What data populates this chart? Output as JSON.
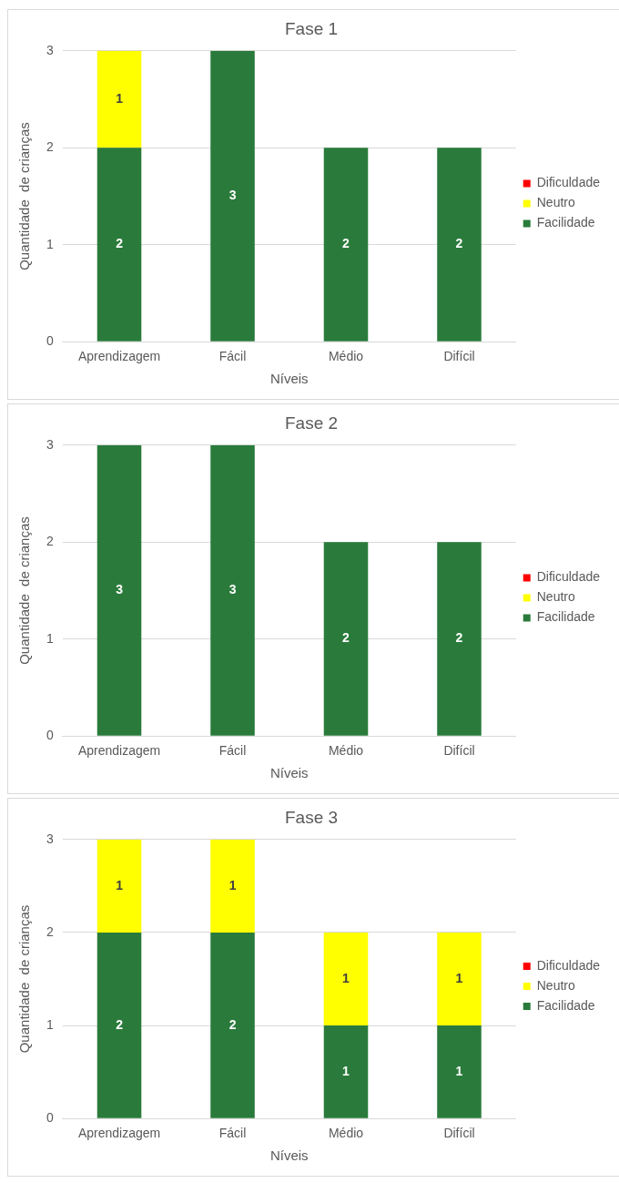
{
  "chart_data": [
    {
      "type": "bar",
      "title": "Fase 1",
      "xlabel": "Níveis",
      "ylabel": "Quantidade  de crianças",
      "categories": [
        "Aprendizagem",
        "Fácil",
        "Médio",
        "Difícil"
      ],
      "stacked": true,
      "ylim": [
        0,
        3
      ],
      "yticks": [
        0,
        1,
        2,
        3
      ],
      "grid": "y",
      "legend": "right",
      "data_labels": true,
      "series": [
        {
          "name": "Facilidade",
          "color": "#2a7b3b",
          "values": [
            2,
            3,
            2,
            2
          ]
        },
        {
          "name": "Neutro",
          "color": "#ffff00",
          "values": [
            1,
            null,
            null,
            null
          ]
        },
        {
          "name": "Dificuldade",
          "color": "#ff0000",
          "values": [
            null,
            null,
            null,
            null
          ]
        }
      ]
    },
    {
      "type": "bar",
      "title": "Fase 2",
      "xlabel": "Níveis",
      "ylabel": "Quantidade  de crianças",
      "categories": [
        "Aprendizagem",
        "Fácil",
        "Médio",
        "Difícil"
      ],
      "stacked": true,
      "ylim": [
        0,
        3
      ],
      "yticks": [
        0,
        1,
        2,
        3
      ],
      "grid": "y",
      "legend": "right",
      "data_labels": true,
      "series": [
        {
          "name": "Facilidade",
          "color": "#2a7b3b",
          "values": [
            3,
            3,
            2,
            2
          ]
        },
        {
          "name": "Neutro",
          "color": "#ffff00",
          "values": [
            null,
            null,
            null,
            null
          ]
        },
        {
          "name": "Dificuldade",
          "color": "#ff0000",
          "values": [
            null,
            null,
            null,
            null
          ]
        }
      ]
    },
    {
      "type": "bar",
      "title": "Fase 3",
      "xlabel": "Níveis",
      "ylabel": "Quantidade  de crianças",
      "categories": [
        "Aprendizagem",
        "Fácil",
        "Médio",
        "Difícil"
      ],
      "stacked": true,
      "ylim": [
        0,
        3
      ],
      "yticks": [
        0,
        1,
        2,
        3
      ],
      "grid": "y",
      "legend": "right",
      "data_labels": true,
      "series": [
        {
          "name": "Facilidade",
          "color": "#2a7b3b",
          "values": [
            2,
            2,
            1,
            1
          ]
        },
        {
          "name": "Neutro",
          "color": "#ffff00",
          "values": [
            1,
            1,
            1,
            1
          ]
        },
        {
          "name": "Dificuldade",
          "color": "#ff0000",
          "values": [
            null,
            null,
            null,
            null
          ]
        }
      ]
    }
  ]
}
